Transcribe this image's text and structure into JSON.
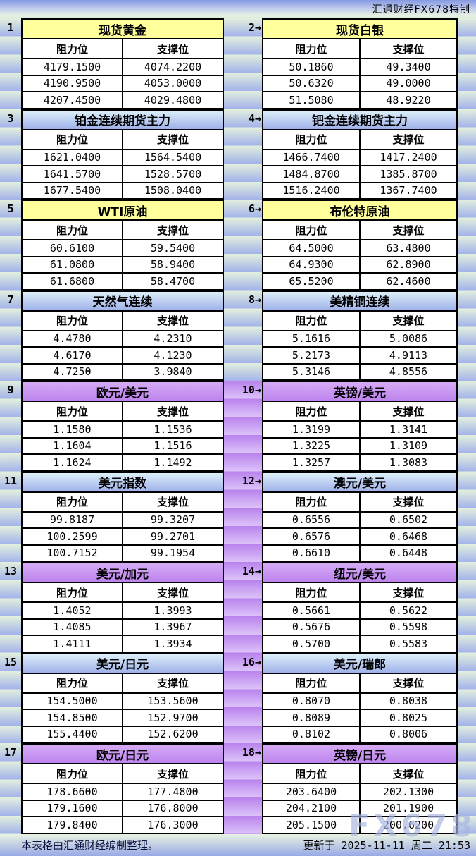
{
  "header": {
    "brand": "汇通财经FX678特制"
  },
  "watermark": "FX678",
  "columns": {
    "resistance": "阻力位",
    "support": "支撑位"
  },
  "footer": {
    "left": "本表格由汇通财经编制整理。",
    "right": "更新于 2025-11-11 周二 21:53"
  },
  "colors": {
    "yellow_header": "#FFFF9B",
    "blue_header_top": "#DCEFF9",
    "blue_header_bottom": "#9FB1E9",
    "purple_header_top": "#D5ABF5",
    "purple_header_bottom": "#BE84EE",
    "band_green": "#E3F0DD",
    "band_blue": "#A3B2EA",
    "strip_purple_dark": "#B982EC",
    "strip_purple_light": "#DCC3FA",
    "table_border": "#000000",
    "watermark": "#A8B6DE"
  },
  "panels": [
    {
      "index_label": "1",
      "title": "现货黄金",
      "theme": "yellow",
      "rows": [
        [
          "4179.1500",
          "4074.2200"
        ],
        [
          "4190.9500",
          "4053.0000"
        ],
        [
          "4207.4500",
          "4029.4800"
        ]
      ]
    },
    {
      "index_label": "2→",
      "title": "现货白银",
      "theme": "yellow",
      "rows": [
        [
          "50.1860",
          "49.3400"
        ],
        [
          "50.6320",
          "49.0000"
        ],
        [
          "51.5080",
          "48.9220"
        ]
      ]
    },
    {
      "index_label": "3",
      "title": "铂金连续期货主力",
      "theme": "blue",
      "rows": [
        [
          "1621.0400",
          "1564.5400"
        ],
        [
          "1641.5700",
          "1528.5700"
        ],
        [
          "1677.5400",
          "1508.0400"
        ]
      ]
    },
    {
      "index_label": "4→",
      "title": "钯金连续期货主力",
      "theme": "blue",
      "rows": [
        [
          "1466.7400",
          "1417.2400"
        ],
        [
          "1484.8700",
          "1385.8700"
        ],
        [
          "1516.2400",
          "1367.7400"
        ]
      ]
    },
    {
      "index_label": "5",
      "title": "WTI原油",
      "theme": "yellow",
      "rows": [
        [
          "60.6100",
          "59.5400"
        ],
        [
          "61.0800",
          "58.9400"
        ],
        [
          "61.6800",
          "58.4700"
        ]
      ]
    },
    {
      "index_label": "6→",
      "title": "布伦特原油",
      "theme": "yellow",
      "rows": [
        [
          "64.5000",
          "63.4800"
        ],
        [
          "64.9300",
          "62.8900"
        ],
        [
          "65.5200",
          "62.4600"
        ]
      ]
    },
    {
      "index_label": "7",
      "title": "天然气连续",
      "theme": "blue",
      "rows": [
        [
          "4.4780",
          "4.2310"
        ],
        [
          "4.6170",
          "4.1230"
        ],
        [
          "4.7250",
          "3.9840"
        ]
      ]
    },
    {
      "index_label": "8→",
      "title": "美精铜连续",
      "theme": "blue",
      "rows": [
        [
          "5.1616",
          "5.0086"
        ],
        [
          "5.2173",
          "4.9113"
        ],
        [
          "5.3146",
          "4.8556"
        ]
      ]
    },
    {
      "index_label": "9",
      "title": "欧元/美元",
      "theme": "purple",
      "rows": [
        [
          "1.1580",
          "1.1536"
        ],
        [
          "1.1604",
          "1.1516"
        ],
        [
          "1.1624",
          "1.1492"
        ]
      ]
    },
    {
      "index_label": "10→",
      "title": "英镑/美元",
      "theme": "purple",
      "rows": [
        [
          "1.3199",
          "1.3141"
        ],
        [
          "1.3225",
          "1.3109"
        ],
        [
          "1.3257",
          "1.3083"
        ]
      ]
    },
    {
      "index_label": "11",
      "title": "美元指数",
      "theme": "blue",
      "rows": [
        [
          "99.8187",
          "99.3207"
        ],
        [
          "100.2599",
          "99.2701"
        ],
        [
          "100.7152",
          "99.1954"
        ]
      ]
    },
    {
      "index_label": "12→",
      "title": "澳元/美元",
      "theme": "blue",
      "rows": [
        [
          "0.6556",
          "0.6502"
        ],
        [
          "0.6576",
          "0.6468"
        ],
        [
          "0.6610",
          "0.6448"
        ]
      ]
    },
    {
      "index_label": "13",
      "title": "美元/加元",
      "theme": "purple",
      "rows": [
        [
          "1.4052",
          "1.3993"
        ],
        [
          "1.4085",
          "1.3967"
        ],
        [
          "1.4111",
          "1.3934"
        ]
      ]
    },
    {
      "index_label": "14→",
      "title": "纽元/美元",
      "theme": "purple",
      "rows": [
        [
          "0.5661",
          "0.5622"
        ],
        [
          "0.5676",
          "0.5598"
        ],
        [
          "0.5700",
          "0.5583"
        ]
      ]
    },
    {
      "index_label": "15",
      "title": "美元/日元",
      "theme": "blue",
      "rows": [
        [
          "154.5000",
          "153.5600"
        ],
        [
          "154.8500",
          "152.9700"
        ],
        [
          "155.4400",
          "152.6200"
        ]
      ]
    },
    {
      "index_label": "16→",
      "title": "美元/瑞郎",
      "theme": "blue",
      "rows": [
        [
          "0.8070",
          "0.8038"
        ],
        [
          "0.8089",
          "0.8025"
        ],
        [
          "0.8102",
          "0.8006"
        ]
      ]
    },
    {
      "index_label": "17",
      "title": "欧元/日元",
      "theme": "purple",
      "rows": [
        [
          "178.6600",
          "177.4800"
        ],
        [
          "179.1600",
          "176.8000"
        ],
        [
          "179.8400",
          "176.3000"
        ]
      ]
    },
    {
      "index_label": "18→",
      "title": "英镑/日元",
      "theme": "purple",
      "rows": [
        [
          "203.6400",
          "202.1300"
        ],
        [
          "204.2100",
          "201.1900"
        ],
        [
          "205.1500",
          "200.6200"
        ]
      ]
    }
  ]
}
